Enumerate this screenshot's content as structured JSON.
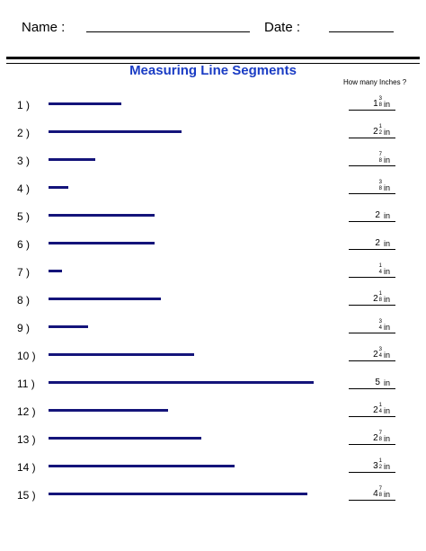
{
  "header": {
    "name_label": "Name :",
    "date_label": "Date :"
  },
  "title": "Measuring Line Segments",
  "answer_header": "How many Inches ?",
  "unit": "in",
  "line_color": "#14147a",
  "title_color": "#1a3cc4",
  "items": [
    {
      "num": "1 )",
      "length_in": 1.375,
      "whole": "1",
      "num_frac": "3",
      "den": "8"
    },
    {
      "num": "2 )",
      "length_in": 2.5,
      "whole": "2",
      "num_frac": "1",
      "den": "2"
    },
    {
      "num": "3 )",
      "length_in": 0.875,
      "whole": "",
      "num_frac": "7",
      "den": "8"
    },
    {
      "num": "4 )",
      "length_in": 0.375,
      "whole": "",
      "num_frac": "3",
      "den": "8"
    },
    {
      "num": "5 )",
      "length_in": 2,
      "whole": "2",
      "num_frac": "",
      "den": ""
    },
    {
      "num": "6 )",
      "length_in": 2,
      "whole": "2",
      "num_frac": "",
      "den": ""
    },
    {
      "num": "7 )",
      "length_in": 0.25,
      "whole": "",
      "num_frac": "1",
      "den": "4"
    },
    {
      "num": "8 )",
      "length_in": 2.125,
      "whole": "2",
      "num_frac": "1",
      "den": "8"
    },
    {
      "num": "9 )",
      "length_in": 0.75,
      "whole": "",
      "num_frac": "3",
      "den": "4"
    },
    {
      "num": "10 )",
      "length_in": 2.75,
      "whole": "2",
      "num_frac": "3",
      "den": "4"
    },
    {
      "num": "11 )",
      "length_in": 5,
      "whole": "5",
      "num_frac": "",
      "den": ""
    },
    {
      "num": "12 )",
      "length_in": 2.25,
      "whole": "2",
      "num_frac": "1",
      "den": "4"
    },
    {
      "num": "13 )",
      "length_in": 2.875,
      "whole": "2",
      "num_frac": "7",
      "den": "8"
    },
    {
      "num": "14 )",
      "length_in": 3.5,
      "whole": "3",
      "num_frac": "1",
      "den": "2"
    },
    {
      "num": "15 )",
      "length_in": 4.875,
      "whole": "4",
      "num_frac": "7",
      "den": "8"
    }
  ]
}
